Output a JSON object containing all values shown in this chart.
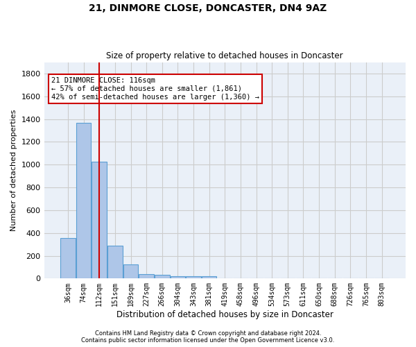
{
  "title": "21, DINMORE CLOSE, DONCASTER, DN4 9AZ",
  "subtitle": "Size of property relative to detached houses in Doncaster",
  "xlabel": "Distribution of detached houses by size in Doncaster",
  "ylabel": "Number of detached properties",
  "bar_values": [
    355,
    1365,
    1025,
    290,
    125,
    40,
    35,
    22,
    18,
    20,
    0,
    0,
    0,
    0,
    0,
    0,
    0,
    0,
    0,
    0,
    0
  ],
  "categories": [
    "36sqm",
    "74sqm",
    "112sqm",
    "151sqm",
    "189sqm",
    "227sqm",
    "266sqm",
    "304sqm",
    "343sqm",
    "381sqm",
    "419sqm",
    "458sqm",
    "496sqm",
    "534sqm",
    "573sqm",
    "611sqm",
    "650sqm",
    "688sqm",
    "726sqm",
    "765sqm",
    "803sqm"
  ],
  "bar_color": "#aec6e8",
  "bar_edge_color": "#5a9fd4",
  "red_line_x": 2,
  "annotation_text": "21 DINMORE CLOSE: 116sqm\n← 57% of detached houses are smaller (1,861)\n42% of semi-detached houses are larger (1,360) →",
  "annotation_box_color": "#ffffff",
  "annotation_box_edge": "#cc0000",
  "red_line_color": "#cc0000",
  "ylim": [
    0,
    1900
  ],
  "yticks": [
    0,
    200,
    400,
    600,
    800,
    1000,
    1200,
    1400,
    1600,
    1800
  ],
  "grid_color": "#cccccc",
  "bg_color": "#eaf0f8",
  "footer_line1": "Contains HM Land Registry data © Crown copyright and database right 2024.",
  "footer_line2": "Contains public sector information licensed under the Open Government Licence v3.0."
}
